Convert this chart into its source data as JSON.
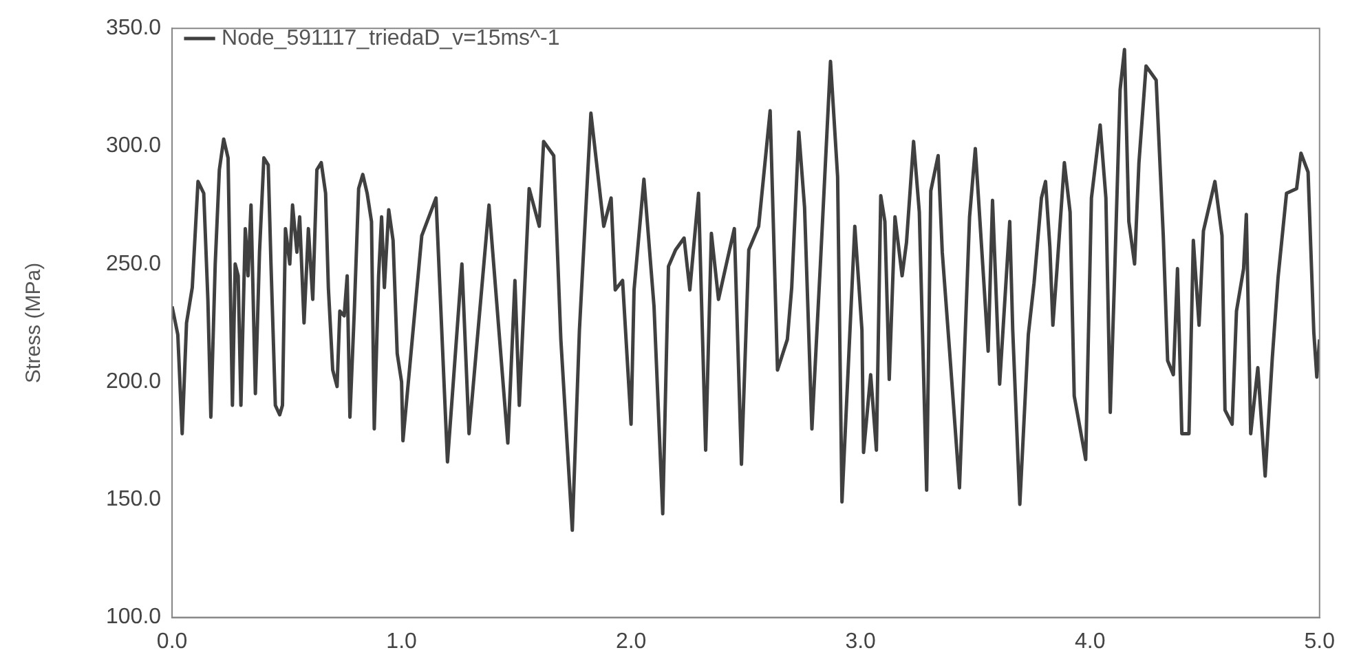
{
  "chart_data": {
    "type": "line",
    "ylabel": "Stress (MPa)",
    "xlim": [
      0,
      5
    ],
    "xticks": [
      {
        "value": 0,
        "label": "0.0"
      },
      {
        "value": 1,
        "label": "1.0"
      },
      {
        "value": 2,
        "label": "2.0"
      },
      {
        "value": 3,
        "label": "3.0"
      },
      {
        "value": 4,
        "label": "4.0"
      },
      {
        "value": 5,
        "label": "5.0"
      }
    ],
    "ylim": [
      100,
      350
    ],
    "yticks": [
      {
        "value": 100,
        "label": "100.0"
      },
      {
        "value": 150,
        "label": "150.0"
      },
      {
        "value": 200,
        "label": "200.0"
      },
      {
        "value": 250,
        "label": "250.0"
      },
      {
        "value": 300,
        "label": "300.0"
      },
      {
        "value": 350,
        "label": "350.0"
      }
    ],
    "grid": false,
    "legend": "top left",
    "marker": "none",
    "line_style": "solid",
    "series": [
      {
        "name": "Node_591117_triedaD_v=15ms^-1",
        "color": "#404040",
        "x": [
          0,
          0.025,
          0.044,
          0.063,
          0.088,
          0.113,
          0.138,
          0.156,
          0.169,
          0.188,
          0.206,
          0.225,
          0.244,
          0.263,
          0.275,
          0.288,
          0.3,
          0.319,
          0.331,
          0.344,
          0.363,
          0.381,
          0.4,
          0.419,
          0.431,
          0.45,
          0.469,
          0.481,
          0.494,
          0.513,
          0.525,
          0.544,
          0.556,
          0.575,
          0.594,
          0.613,
          0.631,
          0.65,
          0.669,
          0.681,
          0.7,
          0.719,
          0.731,
          0.75,
          0.763,
          0.775,
          0.794,
          0.813,
          0.831,
          0.85,
          0.869,
          0.881,
          0.9,
          0.913,
          0.925,
          0.944,
          0.963,
          0.981,
          1.0,
          1.006,
          1.088,
          1.15,
          1.2,
          1.263,
          1.294,
          1.381,
          1.463,
          1.494,
          1.513,
          1.556,
          1.6,
          1.619,
          1.663,
          1.694,
          1.744,
          1.775,
          1.825,
          1.881,
          1.913,
          1.931,
          1.963,
          2.0,
          2.013,
          2.056,
          2.1,
          2.138,
          2.163,
          2.194,
          2.231,
          2.256,
          2.294,
          2.325,
          2.35,
          2.381,
          2.413,
          2.45,
          2.481,
          2.513,
          2.556,
          2.606,
          2.638,
          2.681,
          2.7,
          2.731,
          2.756,
          2.788,
          2.825,
          2.869,
          2.9,
          2.919,
          2.975,
          3.006,
          3.013,
          3.044,
          3.069,
          3.088,
          3.106,
          3.125,
          3.15,
          3.181,
          3.2,
          3.231,
          3.256,
          3.288,
          3.306,
          3.338,
          3.356,
          3.388,
          3.431,
          3.475,
          3.5,
          3.538,
          3.556,
          3.575,
          3.606,
          3.65,
          3.663,
          3.694,
          3.731,
          3.756,
          3.788,
          3.806,
          3.825,
          3.838,
          3.856,
          3.888,
          3.913,
          3.931,
          3.981,
          4.006,
          4.044,
          4.069,
          4.088,
          4.106,
          4.131,
          4.15,
          4.169,
          4.194,
          4.213,
          4.244,
          4.288,
          4.319,
          4.338,
          4.363,
          4.381,
          4.4,
          4.431,
          4.45,
          4.475,
          4.494,
          4.544,
          4.575,
          4.588,
          4.619,
          4.638,
          4.669,
          4.681,
          4.7,
          4.731,
          4.763,
          4.794,
          4.819,
          4.856,
          4.9,
          4.919,
          4.95,
          4.975,
          4.988,
          5.0
        ],
        "values": [
          232,
          220,
          178,
          225,
          240,
          285,
          280,
          235,
          185,
          250,
          290,
          303,
          295,
          190,
          250,
          245,
          190,
          265,
          245,
          275,
          195,
          255,
          295,
          292,
          250,
          190,
          186,
          190,
          265,
          250,
          275,
          255,
          270,
          225,
          265,
          235,
          290,
          293,
          280,
          240,
          205,
          198,
          230,
          228,
          245,
          185,
          230,
          282,
          288,
          280,
          268,
          180,
          245,
          270,
          240,
          273,
          260,
          212,
          200,
          175,
          262,
          278,
          166,
          250,
          178,
          275,
          174,
          243,
          190,
          282,
          266,
          302,
          296,
          218,
          137,
          222,
          314,
          266,
          278,
          239,
          243,
          182,
          239,
          286,
          232,
          144,
          249,
          256,
          261,
          239,
          280,
          171,
          263,
          235,
          249,
          265,
          165,
          256,
          266,
          315,
          205,
          218,
          240,
          306,
          274,
          180,
          250,
          336,
          287,
          149,
          266,
          222,
          170,
          203,
          171,
          279,
          268,
          201,
          270,
          245,
          259,
          302,
          272,
          154,
          281,
          296,
          255,
          213,
          155,
          270,
          299,
          241,
          213,
          277,
          199,
          268,
          222,
          148,
          220,
          242,
          278,
          285,
          257,
          224,
          248,
          293,
          272,
          194,
          167,
          278,
          309,
          278,
          187,
          242,
          324,
          341,
          268,
          250,
          293,
          334,
          328,
          262,
          209,
          203,
          248,
          178,
          178,
          260,
          224,
          264,
          285,
          262,
          188,
          182,
          230,
          248,
          271,
          178,
          206,
          160,
          210,
          244,
          280,
          282,
          297,
          289,
          221,
          202,
          218
        ]
      }
    ]
  }
}
